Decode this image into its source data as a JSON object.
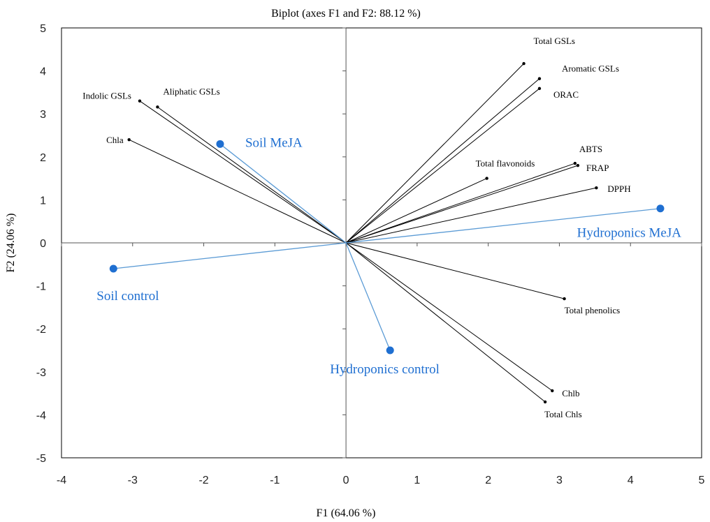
{
  "chart_data": {
    "type": "scatter",
    "subtype": "biplot",
    "title": "Biplot (axes F1 and F2: 88.12 %)",
    "xlabel": "F1 (64.06 %)",
    "ylabel": "F2 (24.06 %)",
    "xlim": [
      -4,
      5
    ],
    "ylim": [
      -5,
      5
    ],
    "xticks": [
      "-4",
      "-3",
      "-2",
      "-1",
      "0",
      "1",
      "2",
      "3",
      "4",
      "5"
    ],
    "yticks": [
      "5",
      "4",
      "3",
      "2",
      "1",
      "0",
      "-1",
      "-2",
      "-3",
      "-4",
      "-5"
    ],
    "grid": false,
    "colors": {
      "variables": "#000000",
      "observations": "#1f6fd1",
      "observation_lines": "#5b9bd5"
    },
    "variables": [
      {
        "name": "Total GSLs",
        "x": 2.5,
        "y": 4.17
      },
      {
        "name": "Aromatic GSLs",
        "x": 2.72,
        "y": 3.82
      },
      {
        "name": "ORAC",
        "x": 2.72,
        "y": 3.59
      },
      {
        "name": "Indolic GSLs",
        "x": -2.9,
        "y": 3.3
      },
      {
        "name": "Aliphatic GSLs",
        "x": -2.65,
        "y": 3.16
      },
      {
        "name": "Chla",
        "x": -3.05,
        "y": 2.4
      },
      {
        "name": "ABTS",
        "x": 3.22,
        "y": 1.85
      },
      {
        "name": "FRAP",
        "x": 3.26,
        "y": 1.8
      },
      {
        "name": "Total flavonoids",
        "x": 1.98,
        "y": 1.5
      },
      {
        "name": "DPPH",
        "x": 3.52,
        "y": 1.28
      },
      {
        "name": "Total phenolics",
        "x": 3.07,
        "y": -1.3
      },
      {
        "name": "Chlb",
        "x": 2.9,
        "y": -3.44
      },
      {
        "name": "Total Chls",
        "x": 2.8,
        "y": -3.7
      }
    ],
    "observations": [
      {
        "name": "Soil MeJA",
        "x": -1.77,
        "y": 2.3
      },
      {
        "name": "Hydroponics MeJA",
        "x": 4.42,
        "y": 0.8
      },
      {
        "name": "Soil control",
        "x": -3.27,
        "y": -0.6
      },
      {
        "name": "Hydroponics control",
        "x": 0.62,
        "y": -2.5
      }
    ]
  }
}
